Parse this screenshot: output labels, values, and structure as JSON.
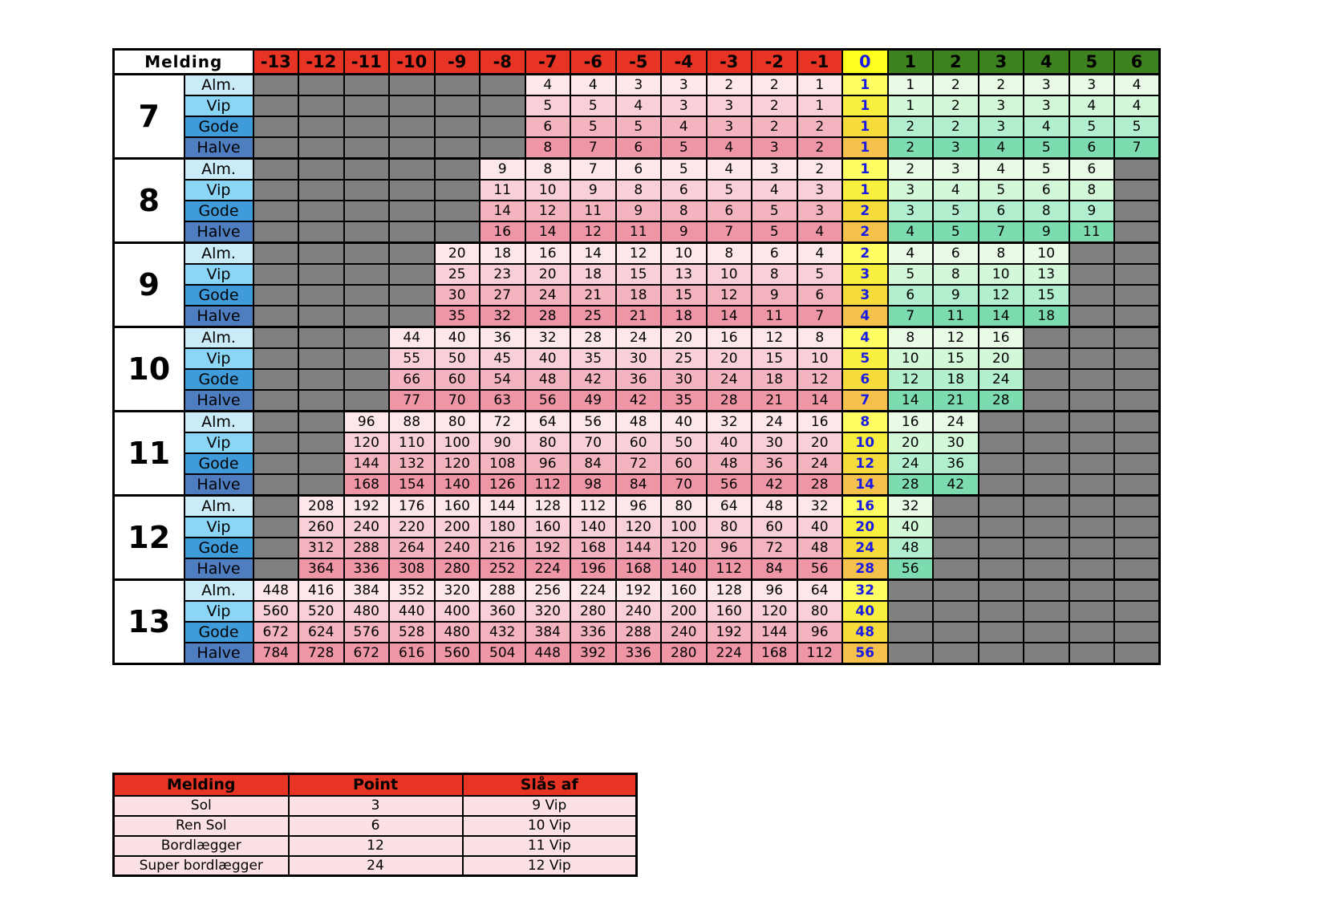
{
  "main_table": {
    "corner_label": "Melding",
    "columns": [
      "-13",
      "-12",
      "-11",
      "-10",
      "-9",
      "-8",
      "-7",
      "-6",
      "-5",
      "-4",
      "-3",
      "-2",
      "-1",
      "0",
      "1",
      "2",
      "3",
      "4",
      "5",
      "6"
    ],
    "categories": [
      "Alm.",
      "Vip",
      "Gode",
      "Halve"
    ],
    "blocks": [
      {
        "bid": "7",
        "rows": [
          [
            null,
            null,
            null,
            null,
            null,
            null,
            4,
            4,
            3,
            3,
            2,
            2,
            1,
            1,
            1,
            2,
            2,
            3,
            3,
            4
          ],
          [
            null,
            null,
            null,
            null,
            null,
            null,
            5,
            5,
            4,
            3,
            3,
            2,
            1,
            1,
            1,
            2,
            3,
            3,
            4,
            4
          ],
          [
            null,
            null,
            null,
            null,
            null,
            null,
            6,
            5,
            5,
            4,
            3,
            2,
            2,
            1,
            2,
            2,
            3,
            4,
            5,
            5
          ],
          [
            null,
            null,
            null,
            null,
            null,
            null,
            8,
            7,
            6,
            5,
            4,
            3,
            2,
            1,
            2,
            3,
            4,
            5,
            6,
            7
          ]
        ]
      },
      {
        "bid": "8",
        "rows": [
          [
            null,
            null,
            null,
            null,
            null,
            9,
            8,
            7,
            6,
            5,
            4,
            3,
            2,
            1,
            2,
            3,
            4,
            5,
            6,
            null
          ],
          [
            null,
            null,
            null,
            null,
            null,
            11,
            10,
            9,
            8,
            6,
            5,
            4,
            3,
            1,
            3,
            4,
            5,
            6,
            8,
            null
          ],
          [
            null,
            null,
            null,
            null,
            null,
            14,
            12,
            11,
            9,
            8,
            6,
            5,
            3,
            2,
            3,
            5,
            6,
            8,
            9,
            null
          ],
          [
            null,
            null,
            null,
            null,
            null,
            16,
            14,
            12,
            11,
            9,
            7,
            5,
            4,
            2,
            4,
            5,
            7,
            9,
            11,
            null
          ]
        ]
      },
      {
        "bid": "9",
        "rows": [
          [
            null,
            null,
            null,
            null,
            20,
            18,
            16,
            14,
            12,
            10,
            8,
            6,
            4,
            2,
            4,
            6,
            8,
            10,
            null,
            null
          ],
          [
            null,
            null,
            null,
            null,
            25,
            23,
            20,
            18,
            15,
            13,
            10,
            8,
            5,
            3,
            5,
            8,
            10,
            13,
            null,
            null
          ],
          [
            null,
            null,
            null,
            null,
            30,
            27,
            24,
            21,
            18,
            15,
            12,
            9,
            6,
            3,
            6,
            9,
            12,
            15,
            null,
            null
          ],
          [
            null,
            null,
            null,
            null,
            35,
            32,
            28,
            25,
            21,
            18,
            14,
            11,
            7,
            4,
            7,
            11,
            14,
            18,
            null,
            null
          ]
        ]
      },
      {
        "bid": "10",
        "rows": [
          [
            null,
            null,
            null,
            44,
            40,
            36,
            32,
            28,
            24,
            20,
            16,
            12,
            8,
            4,
            8,
            12,
            16,
            null,
            null,
            null
          ],
          [
            null,
            null,
            null,
            55,
            50,
            45,
            40,
            35,
            30,
            25,
            20,
            15,
            10,
            5,
            10,
            15,
            20,
            null,
            null,
            null
          ],
          [
            null,
            null,
            null,
            66,
            60,
            54,
            48,
            42,
            36,
            30,
            24,
            18,
            12,
            6,
            12,
            18,
            24,
            null,
            null,
            null
          ],
          [
            null,
            null,
            null,
            77,
            70,
            63,
            56,
            49,
            42,
            35,
            28,
            21,
            14,
            7,
            14,
            21,
            28,
            null,
            null,
            null
          ]
        ]
      },
      {
        "bid": "11",
        "rows": [
          [
            null,
            null,
            96,
            88,
            80,
            72,
            64,
            56,
            48,
            40,
            32,
            24,
            16,
            8,
            16,
            24,
            null,
            null,
            null,
            null
          ],
          [
            null,
            null,
            120,
            110,
            100,
            90,
            80,
            70,
            60,
            50,
            40,
            30,
            20,
            10,
            20,
            30,
            null,
            null,
            null,
            null
          ],
          [
            null,
            null,
            144,
            132,
            120,
            108,
            96,
            84,
            72,
            60,
            48,
            36,
            24,
            12,
            24,
            36,
            null,
            null,
            null,
            null
          ],
          [
            null,
            null,
            168,
            154,
            140,
            126,
            112,
            98,
            84,
            70,
            56,
            42,
            28,
            14,
            28,
            42,
            null,
            null,
            null,
            null
          ]
        ]
      },
      {
        "bid": "12",
        "rows": [
          [
            null,
            208,
            192,
            176,
            160,
            144,
            128,
            112,
            96,
            80,
            64,
            48,
            32,
            16,
            32,
            null,
            null,
            null,
            null,
            null
          ],
          [
            null,
            260,
            240,
            220,
            200,
            180,
            160,
            140,
            120,
            100,
            80,
            60,
            40,
            20,
            40,
            null,
            null,
            null,
            null,
            null
          ],
          [
            null,
            312,
            288,
            264,
            240,
            216,
            192,
            168,
            144,
            120,
            96,
            72,
            48,
            24,
            48,
            null,
            null,
            null,
            null,
            null
          ],
          [
            null,
            364,
            336,
            308,
            280,
            252,
            224,
            196,
            168,
            140,
            112,
            84,
            56,
            28,
            56,
            null,
            null,
            null,
            null,
            null
          ]
        ]
      },
      {
        "bid": "13",
        "rows": [
          [
            448,
            416,
            384,
            352,
            320,
            288,
            256,
            224,
            192,
            160,
            128,
            96,
            64,
            32,
            null,
            null,
            null,
            null,
            null,
            null
          ],
          [
            560,
            520,
            480,
            440,
            400,
            360,
            320,
            280,
            240,
            200,
            160,
            120,
            80,
            40,
            null,
            null,
            null,
            null,
            null,
            null
          ],
          [
            672,
            624,
            576,
            528,
            480,
            432,
            384,
            336,
            288,
            240,
            192,
            144,
            96,
            48,
            null,
            null,
            null,
            null,
            null,
            null
          ],
          [
            784,
            728,
            672,
            616,
            560,
            504,
            448,
            392,
            336,
            280,
            224,
            168,
            112,
            56,
            null,
            null,
            null,
            null,
            null,
            null
          ]
        ]
      }
    ],
    "colors": {
      "neg": [
        "#fde7ea",
        "#f9d0d7",
        "#f4b4bf",
        "#ee96a6"
      ],
      "zero": [
        "#ffff63",
        "#f8ef3e",
        "#f6dc3a",
        "#f4c24a"
      ],
      "pos": [
        "#e9fbe6",
        "#d3f7d9",
        "#b1efce",
        "#7cdcb0"
      ],
      "unavailable": "#808080"
    }
  },
  "legend_table": {
    "headers": [
      "Melding",
      "Point",
      "Slås af"
    ],
    "rows": [
      [
        "Sol",
        "3",
        "9 Vip"
      ],
      [
        "Ren Sol",
        "6",
        "10 Vip"
      ],
      [
        "Bordlægger",
        "12",
        "11 Vip"
      ],
      [
        "Super bordlægger",
        "24",
        "12 Vip"
      ]
    ]
  }
}
